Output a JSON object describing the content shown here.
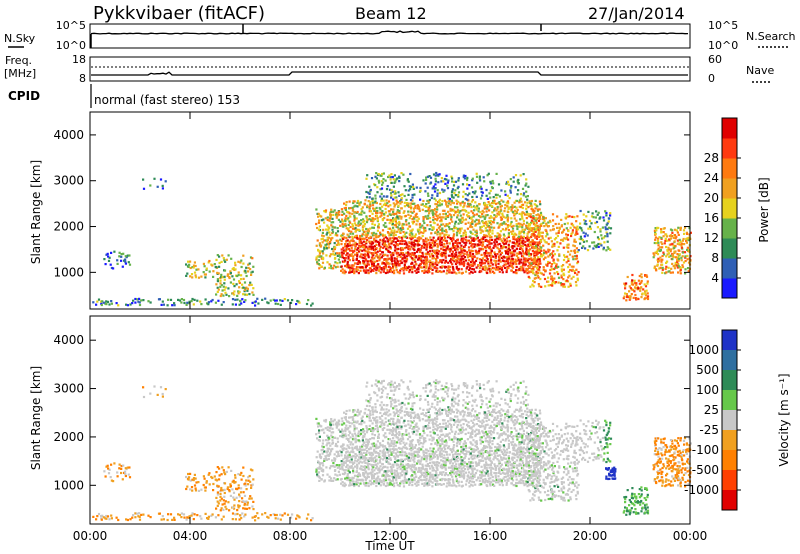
{
  "header": {
    "station": "Pykkvibaer (fitACF)",
    "beam": "Beam 12",
    "date": "27/Jan/2014"
  },
  "status_panels": {
    "nsky_label": "N.Sky",
    "nsearch_label": "N.Search",
    "nsky_ticks": [
      "10^5",
      "10^0"
    ],
    "nsearch_ticks": [
      "10^5",
      "10^0"
    ],
    "freq_label_1": "Freq.",
    "freq_label_2": "[MHz]",
    "freq_ticks": [
      "18",
      "8"
    ],
    "nave_label": "Nave",
    "nave_ticks": [
      "60",
      "0"
    ],
    "cpid_label": "CPID",
    "cpid_value": "normal (fast stereo) 153"
  },
  "chart_data": [
    {
      "type": "heatmap",
      "name": "power",
      "ylabel": "Slant Range [km]",
      "y_ticks": [
        1000,
        2000,
        3000,
        4000
      ],
      "ylim": [
        200,
        4500
      ],
      "x_ticks": [
        "00:00",
        "04:00",
        "08:00",
        "12:00",
        "16:00",
        "20:00",
        "00:00"
      ],
      "xlim_hours": [
        0,
        24
      ],
      "colorbar": {
        "label": "Power [dB]",
        "ticks": [
          "4",
          "8",
          "12",
          "16",
          "20",
          "24",
          "28"
        ],
        "colors": [
          "#1a1aff",
          "#2f5fb5",
          "#2e8b57",
          "#66b24a",
          "#e6d21e",
          "#f0a020",
          "#ff7a10",
          "#ff3a10",
          "#e00000"
        ]
      }
    },
    {
      "type": "heatmap",
      "name": "velocity",
      "ylabel": "Slant Range [km]",
      "y_ticks": [
        1000,
        2000,
        3000,
        4000
      ],
      "ylim": [
        200,
        4500
      ],
      "x_ticks": [
        "00:00",
        "04:00",
        "08:00",
        "12:00",
        "16:00",
        "20:00",
        "00:00"
      ],
      "xlim_hours": [
        0,
        24
      ],
      "xlabel": "Time UT",
      "colorbar": {
        "label": "Velocity [m s⁻¹]",
        "ticks": [
          "1000",
          "500",
          "100",
          "25",
          "-25",
          "-100",
          "-500",
          "-1000"
        ],
        "colors": [
          "#1f33c7",
          "#2f6fa0",
          "#2e8b57",
          "#66c84a",
          "#c8c8c8",
          "#f0a020",
          "#ff8000",
          "#ff4000",
          "#e00000"
        ]
      }
    }
  ]
}
